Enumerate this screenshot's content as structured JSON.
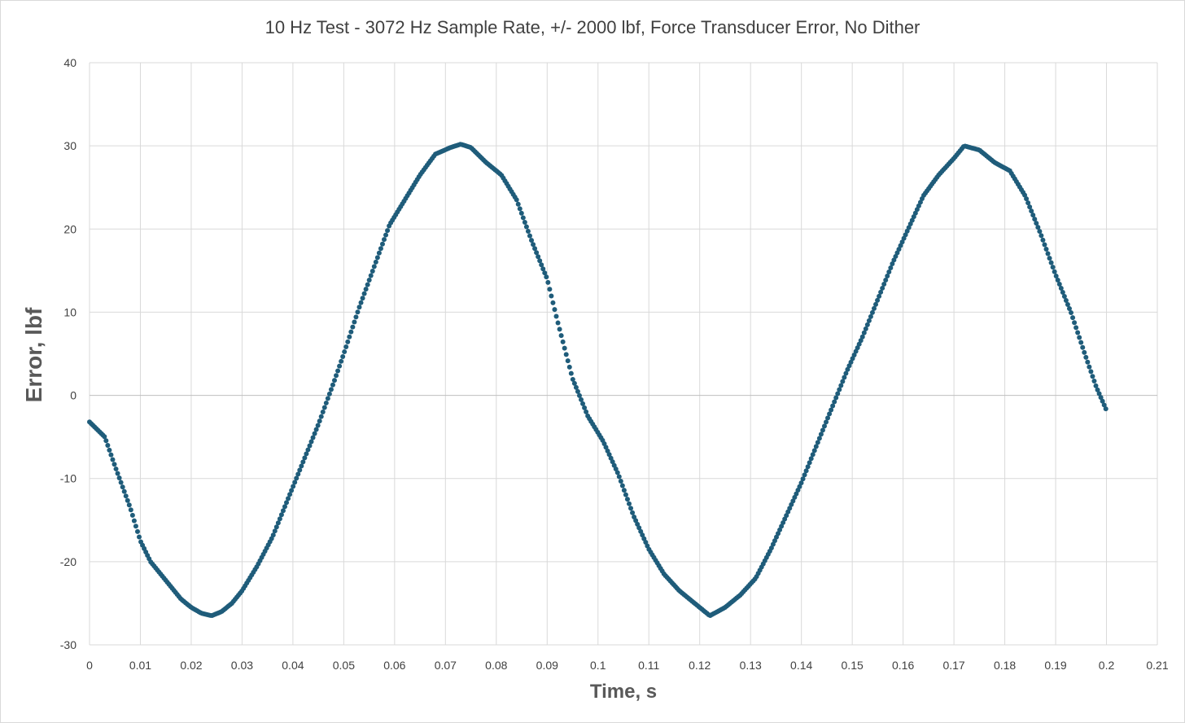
{
  "chart_data": {
    "type": "scatter",
    "title": "10 Hz Test - 3072 Hz Sample Rate, +/- 2000 lbf, Force Transducer Error, No Dither",
    "xlabel": "Time, s",
    "ylabel": "Error, lbf",
    "xlim": [
      0,
      0.21
    ],
    "ylim": [
      -30,
      40
    ],
    "grid": true,
    "marker_color": "#1f5c7a",
    "x_ticks": [
      "0",
      "0.01",
      "0.02",
      "0.03",
      "0.04",
      "0.05",
      "0.06",
      "0.07",
      "0.08",
      "0.09",
      "0.1",
      "0.11",
      "0.12",
      "0.13",
      "0.14",
      "0.15",
      "0.16",
      "0.17",
      "0.18",
      "0.19",
      "0.2",
      "0.21"
    ],
    "y_ticks": [
      "-30",
      "-20",
      "-10",
      "0",
      "10",
      "20",
      "30",
      "40"
    ],
    "series": [
      {
        "name": "Error",
        "sample_rate_hz": 3072,
        "x_start": 0,
        "x_end": 0.2,
        "y_points": [
          [
            0,
            -3.2
          ],
          [
            0.003,
            -5.0
          ],
          [
            0.005,
            -8.5
          ],
          [
            0.008,
            -13.5
          ],
          [
            0.01,
            -17.5
          ],
          [
            0.012,
            -20.0
          ],
          [
            0.014,
            -21.5
          ],
          [
            0.016,
            -23.0
          ],
          [
            0.018,
            -24.5
          ],
          [
            0.02,
            -25.5
          ],
          [
            0.022,
            -26.2
          ],
          [
            0.024,
            -26.5
          ],
          [
            0.026,
            -26.0
          ],
          [
            0.028,
            -25.0
          ],
          [
            0.03,
            -23.5
          ],
          [
            0.033,
            -20.5
          ],
          [
            0.036,
            -17.0
          ],
          [
            0.039,
            -12.5
          ],
          [
            0.042,
            -8.0
          ],
          [
            0.045,
            -3.5
          ],
          [
            0.048,
            1.5
          ],
          [
            0.05,
            5.0
          ],
          [
            0.053,
            10.5
          ],
          [
            0.056,
            15.5
          ],
          [
            0.059,
            20.5
          ],
          [
            0.062,
            23.5
          ],
          [
            0.065,
            26.5
          ],
          [
            0.068,
            29.0
          ],
          [
            0.071,
            29.8
          ],
          [
            0.073,
            30.2
          ],
          [
            0.075,
            29.8
          ],
          [
            0.078,
            28.0
          ],
          [
            0.081,
            26.5
          ],
          [
            0.084,
            23.5
          ],
          [
            0.087,
            18.5
          ],
          [
            0.09,
            14.0
          ],
          [
            0.092,
            9.0
          ],
          [
            0.095,
            2.0
          ],
          [
            0.098,
            -2.5
          ],
          [
            0.101,
            -5.5
          ],
          [
            0.104,
            -9.5
          ],
          [
            0.107,
            -14.5
          ],
          [
            0.11,
            -18.5
          ],
          [
            0.113,
            -21.5
          ],
          [
            0.116,
            -23.5
          ],
          [
            0.119,
            -25.0
          ],
          [
            0.122,
            -26.5
          ],
          [
            0.125,
            -25.5
          ],
          [
            0.128,
            -24.0
          ],
          [
            0.131,
            -22.0
          ],
          [
            0.134,
            -18.5
          ],
          [
            0.137,
            -14.5
          ],
          [
            0.14,
            -10.5
          ],
          [
            0.143,
            -6.0
          ],
          [
            0.146,
            -1.5
          ],
          [
            0.149,
            3.0
          ],
          [
            0.152,
            7.0
          ],
          [
            0.155,
            11.5
          ],
          [
            0.158,
            16.0
          ],
          [
            0.161,
            20.0
          ],
          [
            0.164,
            24.0
          ],
          [
            0.167,
            26.5
          ],
          [
            0.17,
            28.5
          ],
          [
            0.172,
            30.0
          ],
          [
            0.175,
            29.5
          ],
          [
            0.178,
            28.0
          ],
          [
            0.181,
            27.0
          ],
          [
            0.184,
            24.0
          ],
          [
            0.187,
            19.5
          ],
          [
            0.19,
            14.5
          ],
          [
            0.193,
            10.0
          ],
          [
            0.196,
            4.5
          ],
          [
            0.198,
            1.0
          ],
          [
            0.2,
            -1.8
          ]
        ]
      }
    ]
  }
}
